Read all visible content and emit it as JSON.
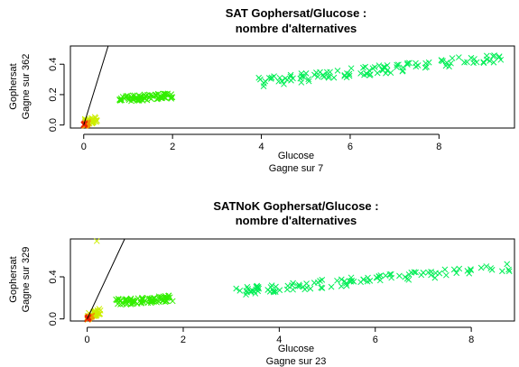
{
  "chart_data": [
    {
      "type": "scatter",
      "title_line1": "SAT Gophersat/Glucose :",
      "title_line2": "nombre d'alternatives",
      "xlabel_line1": "Glucose",
      "xlabel_line2": "Gagne sur  7",
      "ylabel_line1": "Gophersat",
      "ylabel_line2": "Gagne sur  362",
      "xlim": [
        -0.3,
        9.7
      ],
      "ylim": [
        -0.02,
        0.52
      ],
      "x_ticks": [
        0,
        2,
        4,
        6,
        8
      ],
      "y_ticks": [
        0.0,
        0.2,
        0.4
      ],
      "x_tick_labels": [
        "0",
        "2",
        "4",
        "6",
        "8"
      ],
      "y_tick_labels": [
        "0.0",
        "0.2",
        "0.4"
      ],
      "diagonal_line": {
        "x": [
          0,
          0.55
        ],
        "y": [
          0,
          0.52
        ]
      },
      "clusters": [
        {
          "color": "#00ee55",
          "x_range": [
            3.9,
            9.5
          ],
          "y_base": 0.28,
          "y_slope": 0.03,
          "y_spread": 0.03,
          "n": 110
        },
        {
          "color": "#33ee00",
          "x_range": [
            0.8,
            2.0
          ],
          "y_base": 0.17,
          "y_slope": 0.02,
          "y_spread": 0.02,
          "n": 80
        },
        {
          "color": "#ccee00",
          "x_range": [
            0.0,
            0.3
          ],
          "y_base": 0.02,
          "y_slope": 0.05,
          "y_spread": 0.02,
          "n": 40
        },
        {
          "color": "#ee9900",
          "x_range": [
            0.0,
            0.1
          ],
          "y_base": 0.0,
          "y_slope": 0.1,
          "y_spread": 0.01,
          "n": 20
        },
        {
          "color": "#ee2200",
          "x_range": [
            0.0,
            0.03
          ],
          "y_base": 0.0,
          "y_slope": 0.3,
          "y_spread": 0.005,
          "n": 10
        }
      ]
    },
    {
      "type": "scatter",
      "title_line1": "SATNoK Gophersat/Glucose :",
      "title_line2": "nombre d'alternatives",
      "xlabel_line1": "Glucose",
      "xlabel_line2": "Gagne sur  23",
      "ylabel_line1": "Gophersat",
      "ylabel_line2": "Gagne sur  329",
      "xlim": [
        -0.35,
        8.9
      ],
      "ylim": [
        -0.02,
        0.76
      ],
      "x_ticks": [
        0,
        2,
        4,
        6,
        8
      ],
      "y_ticks": [
        0.0,
        0.4
      ],
      "x_tick_labels": [
        "0",
        "2",
        "4",
        "6",
        "8"
      ],
      "y_tick_labels": [
        "0.0",
        "0.4"
      ],
      "diagonal_line": {
        "x": [
          0,
          0.78
        ],
        "y": [
          0,
          0.76
        ]
      },
      "clusters": [
        {
          "color": "#00ee55",
          "x_range": [
            3.1,
            8.8
          ],
          "y_base": 0.26,
          "y_slope": 0.04,
          "y_spread": 0.04,
          "n": 110
        },
        {
          "color": "#33ee00",
          "x_range": [
            0.6,
            1.8
          ],
          "y_base": 0.16,
          "y_slope": 0.03,
          "y_spread": 0.03,
          "n": 80
        },
        {
          "color": "#ccee00",
          "x_range": [
            0.0,
            0.3
          ],
          "y_base": 0.02,
          "y_slope": 0.2,
          "y_spread": 0.03,
          "n": 35
        },
        {
          "color": "#ee9900",
          "x_range": [
            0.0,
            0.1
          ],
          "y_base": 0.0,
          "y_slope": 0.3,
          "y_spread": 0.01,
          "n": 20
        },
        {
          "color": "#ee2200",
          "x_range": [
            0.0,
            0.03
          ],
          "y_base": 0.0,
          "y_slope": 0.5,
          "y_spread": 0.005,
          "n": 10
        }
      ],
      "outliers": [
        {
          "x": 0.2,
          "y": 0.74,
          "color": "#ccee00"
        }
      ]
    }
  ]
}
